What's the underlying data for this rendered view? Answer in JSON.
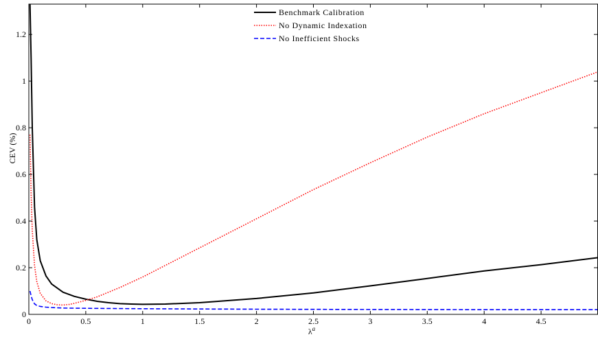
{
  "chart_data": {
    "type": "line",
    "title": "",
    "xlabel": "λ",
    "xlabel_superscript": "a",
    "ylabel": "CEV (%)",
    "xlim": [
      0,
      5
    ],
    "ylim": [
      0,
      1.33
    ],
    "xticks": [
      0,
      0.5,
      1,
      1.5,
      2,
      2.5,
      3,
      3.5,
      4,
      4.5
    ],
    "xtick_labels": [
      "0",
      "0.5",
      "1",
      "1.5",
      "2",
      "2.5",
      "3",
      "3.5",
      "4",
      "4.5"
    ],
    "yticks": [
      0,
      0.2,
      0.4,
      0.6,
      0.8,
      1,
      1.2
    ],
    "ytick_labels": [
      "0",
      "0.2",
      "0.4",
      "0.6",
      "0.8",
      "1",
      "1.2"
    ],
    "grid": false,
    "legend_position": "top-center",
    "series": [
      {
        "name": "Benchmark Calibration",
        "color": "#000000",
        "style": "solid",
        "x": [
          0.01,
          0.02,
          0.03,
          0.05,
          0.07,
          0.1,
          0.15,
          0.2,
          0.3,
          0.4,
          0.5,
          0.6,
          0.7,
          0.8,
          0.9,
          1.0,
          1.2,
          1.5,
          2.0,
          2.5,
          3.0,
          3.5,
          4.0,
          4.5,
          5.0
        ],
        "y": [
          1.33,
          1.1,
          0.8,
          0.46,
          0.32,
          0.23,
          0.165,
          0.13,
          0.095,
          0.077,
          0.065,
          0.056,
          0.05,
          0.046,
          0.044,
          0.043,
          0.044,
          0.05,
          0.068,
          0.092,
          0.122,
          0.154,
          0.186,
          0.213,
          0.243
        ]
      },
      {
        "name": "No Dynamic Indexation",
        "color": "#ff0000",
        "style": "dotted",
        "x": [
          0.01,
          0.02,
          0.03,
          0.05,
          0.07,
          0.1,
          0.15,
          0.2,
          0.25,
          0.3,
          0.35,
          0.4,
          0.5,
          0.6,
          0.8,
          1.0,
          1.5,
          2.0,
          2.5,
          3.0,
          3.5,
          4.0,
          4.5,
          5.0
        ],
        "y": [
          0.77,
          0.52,
          0.36,
          0.21,
          0.14,
          0.09,
          0.058,
          0.046,
          0.041,
          0.04,
          0.042,
          0.047,
          0.06,
          0.075,
          0.115,
          0.16,
          0.285,
          0.41,
          0.535,
          0.65,
          0.76,
          0.86,
          0.95,
          1.04
        ]
      },
      {
        "name": "No Inefficient Shocks",
        "color": "#0000ff",
        "style": "dashed",
        "x": [
          0.01,
          0.02,
          0.03,
          0.05,
          0.07,
          0.1,
          0.15,
          0.2,
          0.3,
          0.5,
          1.0,
          1.5,
          2.0,
          3.0,
          4.0,
          5.0
        ],
        "y": [
          0.1,
          0.08,
          0.063,
          0.045,
          0.038,
          0.034,
          0.031,
          0.029,
          0.027,
          0.026,
          0.024,
          0.023,
          0.022,
          0.021,
          0.02,
          0.02
        ]
      }
    ]
  }
}
